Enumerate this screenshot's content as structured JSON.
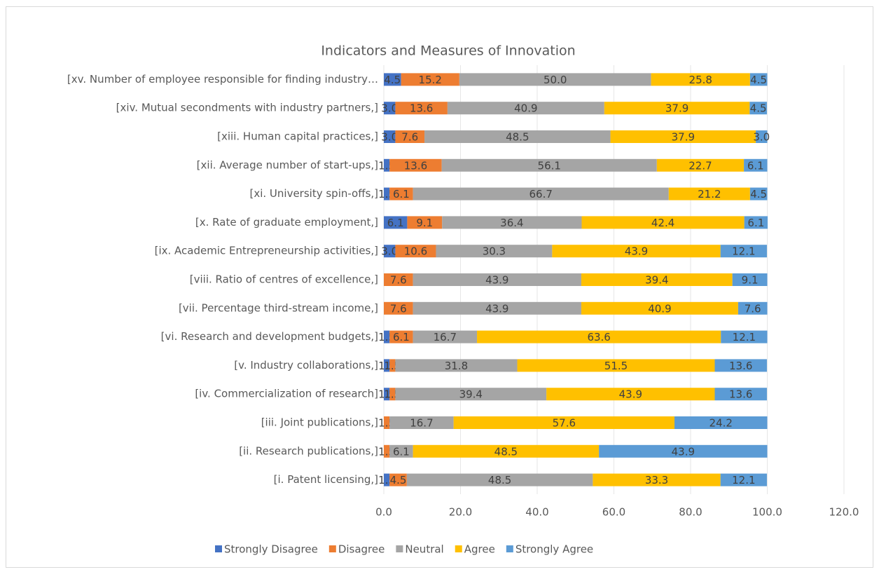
{
  "chart_data": {
    "type": "stacked-bar-horizontal",
    "title": "Indicators and Measures of Innovation",
    "categories": [
      "[xv.  Number of employee responsible for finding industry…",
      "[xiv.  Mutual secondments with industry partners,]",
      "[xiii.  Human capital practices,]",
      "[xii.  Average number of start-ups,]",
      "[xi.  University spin-offs,]",
      "[x.  Rate of graduate employment,]",
      "[ix.  Academic Entrepreneurship activities,]",
      "[viii.  Ratio of centres of excellence,]",
      "[vii.  Percentage third-stream income,]",
      "[vi.  Research and development budgets,]",
      "[v.  Industry collaborations,]",
      "[iv.  Commercialization of research]",
      "[iii.  Joint publications,]",
      "[ii.  Research publications,]",
      "[i.  Patent licensing,]"
    ],
    "series": [
      {
        "name": "Strongly Disagree",
        "color": "#4472c4",
        "values": [
          4.5,
          3,
          3,
          1.5,
          1.5,
          6.1,
          3,
          null,
          null,
          1.5,
          1.5,
          1.5,
          null,
          null,
          1.5
        ],
        "value_labels": [
          "4.5",
          "3.0",
          "3.0",
          "1.5",
          "1.5",
          "6.1",
          "3.0",
          null,
          null,
          "1.5",
          "1.5",
          "1.5",
          null,
          null,
          "1.5"
        ]
      },
      {
        "name": "Disagree",
        "color": "#ed7d31",
        "values": [
          15.2,
          13.6,
          7.6,
          13.6,
          6.1,
          9.1,
          10.6,
          7.6,
          7.6,
          6.1,
          1.5,
          1.5,
          1.5,
          1.5,
          4.5
        ],
        "value_labels": [
          "15.2",
          "13.6",
          "7.6",
          "13.6",
          "6.1",
          "9.1",
          "10.6",
          "7.6",
          "7.6",
          "6.1",
          "1.5",
          "1.5",
          "1.5",
          "1.5",
          "4.5"
        ]
      },
      {
        "name": "Neutral",
        "color": "#a5a5a5",
        "values": [
          50,
          40.9,
          48.5,
          56.1,
          66.7,
          36.4,
          30.3,
          43.9,
          43.9,
          16.7,
          31.8,
          39.4,
          16.7,
          6.1,
          48.5
        ],
        "value_labels": [
          "50.0",
          "40.9",
          "48.5",
          "56.1",
          "66.7",
          "36.4",
          "30.3",
          "43.9",
          "43.9",
          "16.7",
          "31.8",
          "39.4",
          "16.7",
          "6.1",
          "48.5"
        ]
      },
      {
        "name": "Agree",
        "color": "#ffc000",
        "values": [
          25.8,
          37.9,
          37.9,
          22.7,
          21.2,
          42.4,
          43.9,
          39.4,
          40.9,
          63.6,
          51.5,
          43.9,
          57.6,
          48.5,
          33.3
        ],
        "value_labels": [
          "25.8",
          "37.9",
          "37.9",
          "22.7",
          "21.2",
          "42.4",
          "43.9",
          "39.4",
          "40.9",
          "63.6",
          "51.5",
          "43.9",
          "57.6",
          "48.5",
          "33.3"
        ]
      },
      {
        "name": "Strongly Agree",
        "color": "#5b9bd5",
        "values": [
          4.5,
          4.5,
          3,
          6.1,
          4.5,
          6.1,
          12.1,
          9.1,
          7.6,
          12.1,
          13.6,
          13.6,
          24.2,
          43.9,
          12.1
        ],
        "value_labels": [
          "4.5",
          "4.5",
          "3.0",
          "6.1",
          "4.5",
          "6.1",
          "12.1",
          "9.1",
          "7.6",
          "12.1",
          "13.6",
          "13.6",
          "24.2",
          "43.9",
          "12.1"
        ]
      }
    ],
    "xlim": [
      0,
      120
    ],
    "xticks": [
      {
        "value": 0,
        "label": "0.0"
      },
      {
        "value": 20,
        "label": "20.0"
      },
      {
        "value": 40,
        "label": "40.0"
      },
      {
        "value": 60,
        "label": "60.0"
      },
      {
        "value": 80,
        "label": "80.0"
      },
      {
        "value": 100,
        "label": "100.0"
      },
      {
        "value": 120,
        "label": "120.0"
      }
    ],
    "grid": true,
    "legend": "bottom"
  }
}
